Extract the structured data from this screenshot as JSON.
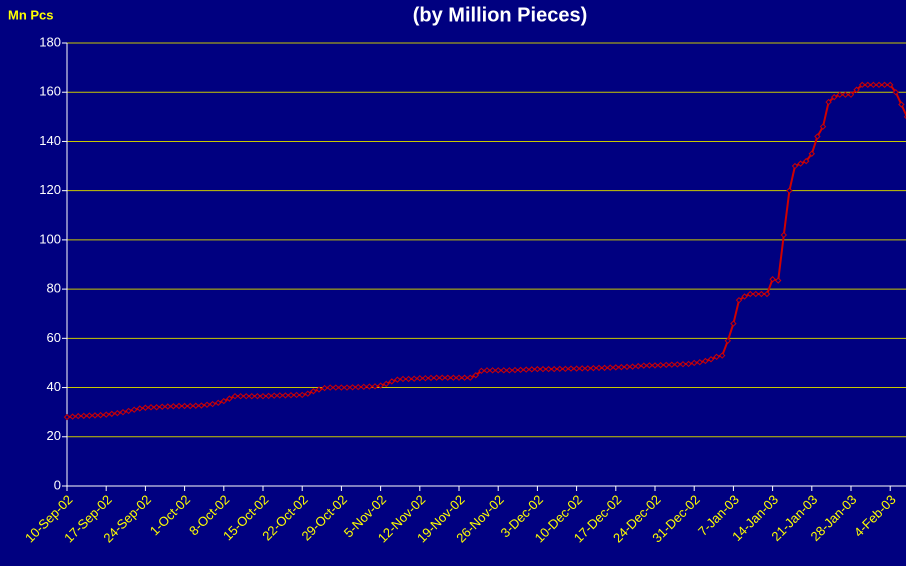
{
  "chart_data": {
    "type": "line",
    "title": "(by Million Pieces)",
    "y_label": "Mn Pcs",
    "categories": [
      "10-Sep-02",
      null,
      null,
      null,
      null,
      null,
      null,
      "17-Sep-02",
      null,
      null,
      null,
      null,
      null,
      null,
      "24-Sep-02",
      null,
      null,
      null,
      null,
      null,
      null,
      "1-Oct-02",
      null,
      null,
      null,
      null,
      null,
      null,
      "8-Oct-02",
      null,
      null,
      null,
      null,
      null,
      null,
      "15-Oct-02",
      null,
      null,
      null,
      null,
      null,
      null,
      "22-Oct-02",
      null,
      null,
      null,
      null,
      null,
      null,
      "29-Oct-02",
      null,
      null,
      null,
      null,
      null,
      null,
      "5-Nov-02",
      null,
      null,
      null,
      null,
      null,
      null,
      "12-Nov-02",
      null,
      null,
      null,
      null,
      null,
      null,
      "19-Nov-02",
      null,
      null,
      null,
      null,
      null,
      null,
      "26-Nov-02",
      null,
      null,
      null,
      null,
      null,
      null,
      "3-Dec-02",
      null,
      null,
      null,
      null,
      null,
      null,
      "10-Dec-02",
      null,
      null,
      null,
      null,
      null,
      null,
      "17-Dec-02",
      null,
      null,
      null,
      null,
      null,
      null,
      "24-Dec-02",
      null,
      null,
      null,
      null,
      null,
      null,
      "31-Dec-02",
      null,
      null,
      null,
      null,
      null,
      null,
      "7-Jan-03",
      null,
      null,
      null,
      null,
      null,
      null,
      "14-Jan-03",
      null,
      null,
      null,
      null,
      null,
      null,
      "21-Jan-03",
      null,
      null,
      null,
      null,
      null,
      null,
      "28-Jan-03",
      null,
      null,
      null,
      null,
      null,
      null,
      "4-Feb-03",
      null,
      null,
      null
    ],
    "series": [
      {
        "name": "Mn Pcs",
        "color": "#d00000",
        "values": [
          28,
          28.2,
          28.4,
          28.5,
          28.6,
          28.7,
          28.8,
          29,
          29.3,
          29.6,
          30,
          30.5,
          31,
          31.5,
          31.8,
          32,
          32,
          32.2,
          32.3,
          32.4,
          32.5,
          32.5,
          32.5,
          32.6,
          32.7,
          33,
          33.3,
          33.8,
          34.5,
          35.5,
          36.5,
          36.5,
          36.5,
          36.5,
          36.5,
          36.5,
          36.6,
          36.7,
          36.8,
          36.8,
          36.9,
          37,
          37,
          37.5,
          38.5,
          39.2,
          39.8,
          40,
          40,
          40,
          40,
          40.1,
          40.2,
          40.3,
          40.4,
          40.5,
          40.8,
          41.5,
          42.5,
          43.2,
          43.5,
          43.5,
          43.6,
          43.8,
          43.8,
          43.9,
          44,
          44,
          44,
          44,
          44,
          44,
          44,
          45,
          46.8,
          47,
          47,
          47,
          47,
          47,
          47.1,
          47.2,
          47.3,
          47.4,
          47.5,
          47.5,
          47.5,
          47.5,
          47.6,
          47.6,
          47.7,
          47.7,
          47.8,
          47.8,
          47.9,
          48,
          48,
          48.1,
          48.2,
          48.3,
          48.4,
          48.5,
          48.7,
          48.9,
          49,
          49,
          49.1,
          49.2,
          49.3,
          49.4,
          49.5,
          49.6,
          50,
          50.3,
          50.8,
          51.5,
          52.5,
          53,
          59,
          66,
          75.5,
          77,
          78,
          78,
          78,
          78,
          84,
          83.5,
          102,
          120,
          130,
          131,
          132,
          135,
          142,
          146,
          156,
          158,
          159,
          159,
          159,
          161,
          163,
          163,
          163,
          163,
          163,
          163,
          160,
          155,
          150
        ]
      }
    ],
    "ylim": [
      0,
      180
    ],
    "yticks": [
      0,
      20,
      40,
      60,
      80,
      100,
      120,
      140,
      160,
      180
    ],
    "grid": true
  }
}
